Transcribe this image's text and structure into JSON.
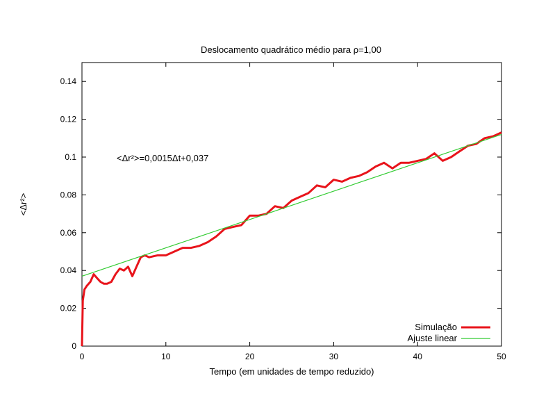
{
  "chart_data": {
    "type": "line",
    "title": "Deslocamento quadrático médio para ρ=1,00",
    "xlabel": "Tempo (em unidades de tempo reduzido)",
    "ylabel": "<Δr²>",
    "annotation": "<Δr²>=0,0015Δt+0,037",
    "xlim": [
      0,
      50
    ],
    "ylim": [
      0,
      0.15
    ],
    "x_ticks": [
      0,
      10,
      20,
      30,
      40,
      50
    ],
    "x_tick_labels": [
      "0",
      "10",
      "20",
      "30",
      "40",
      "50"
    ],
    "y_ticks": [
      0,
      0.02,
      0.04,
      0.06,
      0.08,
      0.1,
      0.12,
      0.14
    ],
    "y_tick_labels": [
      "0",
      "0.02",
      "0.04",
      "0.06",
      "0.08",
      "0.1",
      "0.12",
      "0.14"
    ],
    "grid": false,
    "legend_position": "bottom-right",
    "series": [
      {
        "name": "Simulação",
        "color": "#e8141b",
        "x": [
          0,
          0.1,
          0.3,
          0.6,
          1.0,
          1.4,
          1.8,
          2.2,
          2.6,
          3.0,
          3.5,
          4.0,
          4.5,
          5.0,
          5.5,
          6.0,
          6.5,
          7.0,
          7.5,
          8.0,
          9.0,
          10.0,
          11.0,
          12.0,
          13.0,
          14.0,
          15.0,
          16.0,
          17.0,
          18.0,
          19.0,
          20.0,
          21.0,
          22.0,
          23.0,
          24.0,
          25.0,
          26.0,
          27.0,
          28.0,
          29.0,
          30.0,
          31.0,
          32.0,
          33.0,
          34.0,
          35.0,
          36.0,
          37.0,
          38.0,
          39.0,
          40.0,
          41.0,
          42.0,
          43.0,
          44.0,
          45.0,
          46.0,
          47.0,
          48.0,
          49.0,
          50.0
        ],
        "y": [
          0,
          0.024,
          0.03,
          0.032,
          0.034,
          0.038,
          0.036,
          0.034,
          0.033,
          0.033,
          0.034,
          0.038,
          0.041,
          0.04,
          0.042,
          0.037,
          0.042,
          0.047,
          0.048,
          0.047,
          0.048,
          0.048,
          0.05,
          0.052,
          0.052,
          0.053,
          0.055,
          0.058,
          0.062,
          0.063,
          0.064,
          0.069,
          0.069,
          0.07,
          0.074,
          0.073,
          0.077,
          0.079,
          0.081,
          0.085,
          0.084,
          0.088,
          0.087,
          0.089,
          0.09,
          0.092,
          0.095,
          0.097,
          0.094,
          0.097,
          0.097,
          0.098,
          0.099,
          0.102,
          0.098,
          0.1,
          0.103,
          0.106,
          0.107,
          0.11,
          0.111,
          0.113
        ]
      },
      {
        "name": "Ajuste linear",
        "color": "#33cc33",
        "x": [
          0,
          50
        ],
        "y": [
          0.037,
          0.112
        ]
      }
    ]
  }
}
